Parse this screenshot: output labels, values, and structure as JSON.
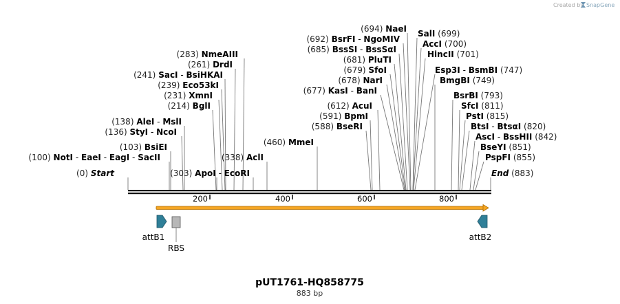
{
  "brand": {
    "prefix": "Created by",
    "name": "SnapGene"
  },
  "plasmid": {
    "name": "pUT1761-HQ858775",
    "size_label": "883 bp"
  },
  "axis": {
    "ticks": [
      "200",
      "400",
      "600",
      "800"
    ]
  },
  "start": {
    "pos": "(0)",
    "label": "Start"
  },
  "end": {
    "label": "End",
    "pos": "(883)"
  },
  "sites": [
    {
      "pos": "(100)",
      "names": [
        "NotI",
        "EaeI",
        "EagI",
        "SacII"
      ]
    },
    {
      "pos": "(103)",
      "names": [
        "BsiEI"
      ]
    },
    {
      "pos": "(136)",
      "names": [
        "StyI",
        "NcoI"
      ]
    },
    {
      "pos": "(138)",
      "names": [
        "AleI",
        "MslI"
      ]
    },
    {
      "pos": "(214)",
      "names": [
        "BglI"
      ]
    },
    {
      "pos": "(231)",
      "names": [
        "XmnI"
      ]
    },
    {
      "pos": "(239)",
      "names": [
        "Eco53kI"
      ]
    },
    {
      "pos": "(241)",
      "names": [
        "SacI",
        "BsiHKAI"
      ]
    },
    {
      "pos": "(261)",
      "names": [
        "DrdI"
      ]
    },
    {
      "pos": "(283)",
      "names": [
        "NmeAIII"
      ]
    },
    {
      "pos": "(303)",
      "names": [
        "ApoI",
        "EcoRI"
      ]
    },
    {
      "pos": "(338)",
      "names": [
        "AclI"
      ]
    },
    {
      "pos": "(460)",
      "names": [
        "MmeI"
      ]
    },
    {
      "pos": "(588)",
      "names": [
        "BseRI"
      ]
    },
    {
      "pos": "(591)",
      "names": [
        "BpmI"
      ]
    },
    {
      "pos": "(612)",
      "names": [
        "AcuI"
      ]
    },
    {
      "pos": "(677)",
      "names": [
        "KasI",
        "BanI"
      ]
    },
    {
      "pos": "(678)",
      "names": [
        "NarI"
      ]
    },
    {
      "pos": "(679)",
      "names": [
        "SfoI"
      ]
    },
    {
      "pos": "(681)",
      "names": [
        "PluTI"
      ]
    },
    {
      "pos": "(685)",
      "names": [
        "BssSI",
        "BssSαI"
      ]
    },
    {
      "pos": "(692)",
      "names": [
        "BsrFI",
        "NgoMIV"
      ]
    },
    {
      "pos": "(694)",
      "names": [
        "NaeI"
      ]
    },
    {
      "pos": "(699)",
      "names": [
        "SalI"
      ]
    },
    {
      "pos": "(700)",
      "names": [
        "AccI"
      ]
    },
    {
      "pos": "(701)",
      "names": [
        "HincII"
      ]
    },
    {
      "pos": "(747)",
      "names": [
        "Esp3I",
        "BsmBI"
      ]
    },
    {
      "pos": "(749)",
      "names": [
        "BmgBI"
      ]
    },
    {
      "pos": "(793)",
      "names": [
        "BsrBI"
      ]
    },
    {
      "pos": "(811)",
      "names": [
        "SfcI"
      ]
    },
    {
      "pos": "(815)",
      "names": [
        "PstI"
      ]
    },
    {
      "pos": "(820)",
      "names": [
        "BtsI",
        "BtsαI"
      ]
    },
    {
      "pos": "(842)",
      "names": [
        "AscI",
        "BssHII"
      ]
    },
    {
      "pos": "(851)",
      "names": [
        "BseYI"
      ]
    },
    {
      "pos": "(855)",
      "names": [
        "PspFI"
      ]
    }
  ],
  "features": {
    "attB1": "attB1",
    "rbs": "RBS",
    "attB2": "attB2"
  },
  "colors": {
    "arrow": "#f5a623",
    "feature": "#2f7f98",
    "rbs": "#b7b7b7",
    "brand_logo": "#6f96b3"
  }
}
